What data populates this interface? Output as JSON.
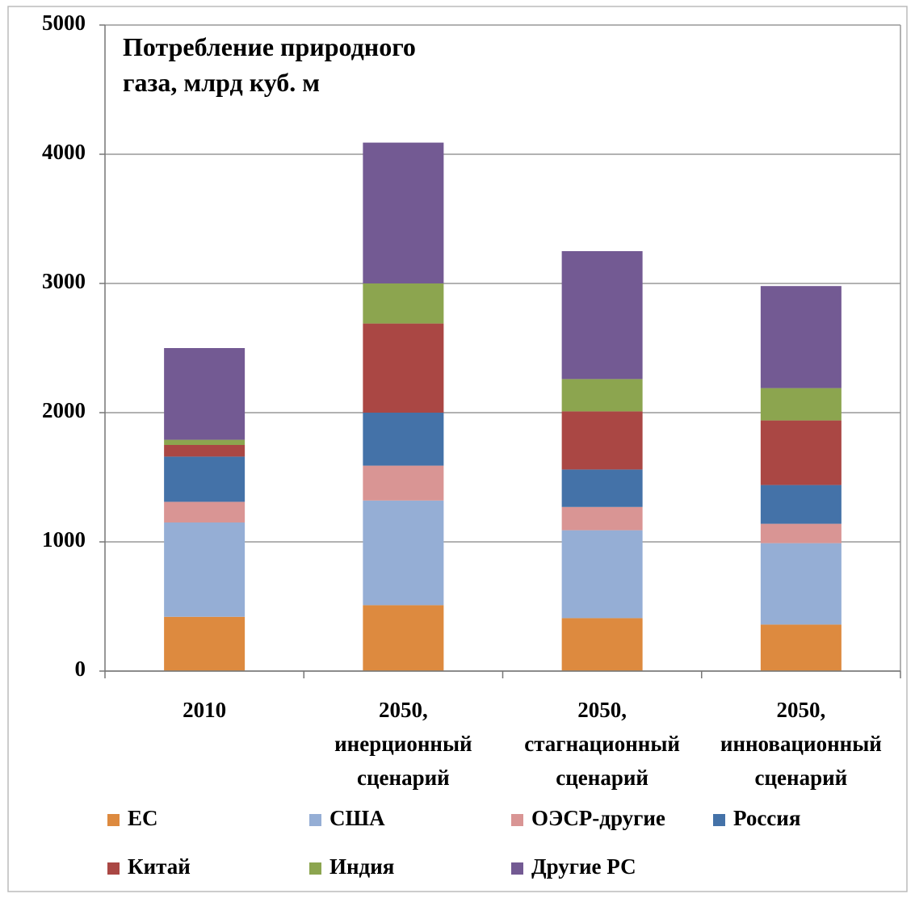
{
  "chart_data": {
    "type": "stacked_bar",
    "title": "Потребление природного газа, млрд куб. м",
    "categories": [
      "2010",
      "2050, инерционный сценарий",
      "2050, стагнационный сценарий",
      "2050, инновационный сценарий"
    ],
    "series": [
      {
        "name": "ЕС",
        "color": "#dd8a3f",
        "values": [
          420,
          510,
          410,
          360
        ]
      },
      {
        "name": "США",
        "color": "#95aed5",
        "values": [
          730,
          810,
          680,
          630
        ]
      },
      {
        "name": "ОЭСР-другие",
        "color": "#d99594",
        "values": [
          160,
          270,
          180,
          150
        ]
      },
      {
        "name": "Россия",
        "color": "#4472a8",
        "values": [
          350,
          410,
          290,
          300
        ]
      },
      {
        "name": "Китай",
        "color": "#aa4744",
        "values": [
          90,
          690,
          450,
          500
        ]
      },
      {
        "name": "Индия",
        "color": "#8ca54f",
        "values": [
          40,
          310,
          250,
          250
        ]
      },
      {
        "name": "Другие РС",
        "color": "#735a93",
        "values": [
          710,
          1090,
          990,
          790
        ]
      }
    ],
    "ylim": [
      0,
      5000
    ],
    "yticks": [
      0,
      1000,
      2000,
      3000,
      4000,
      5000
    ],
    "grid": true,
    "legend": "bottom"
  }
}
